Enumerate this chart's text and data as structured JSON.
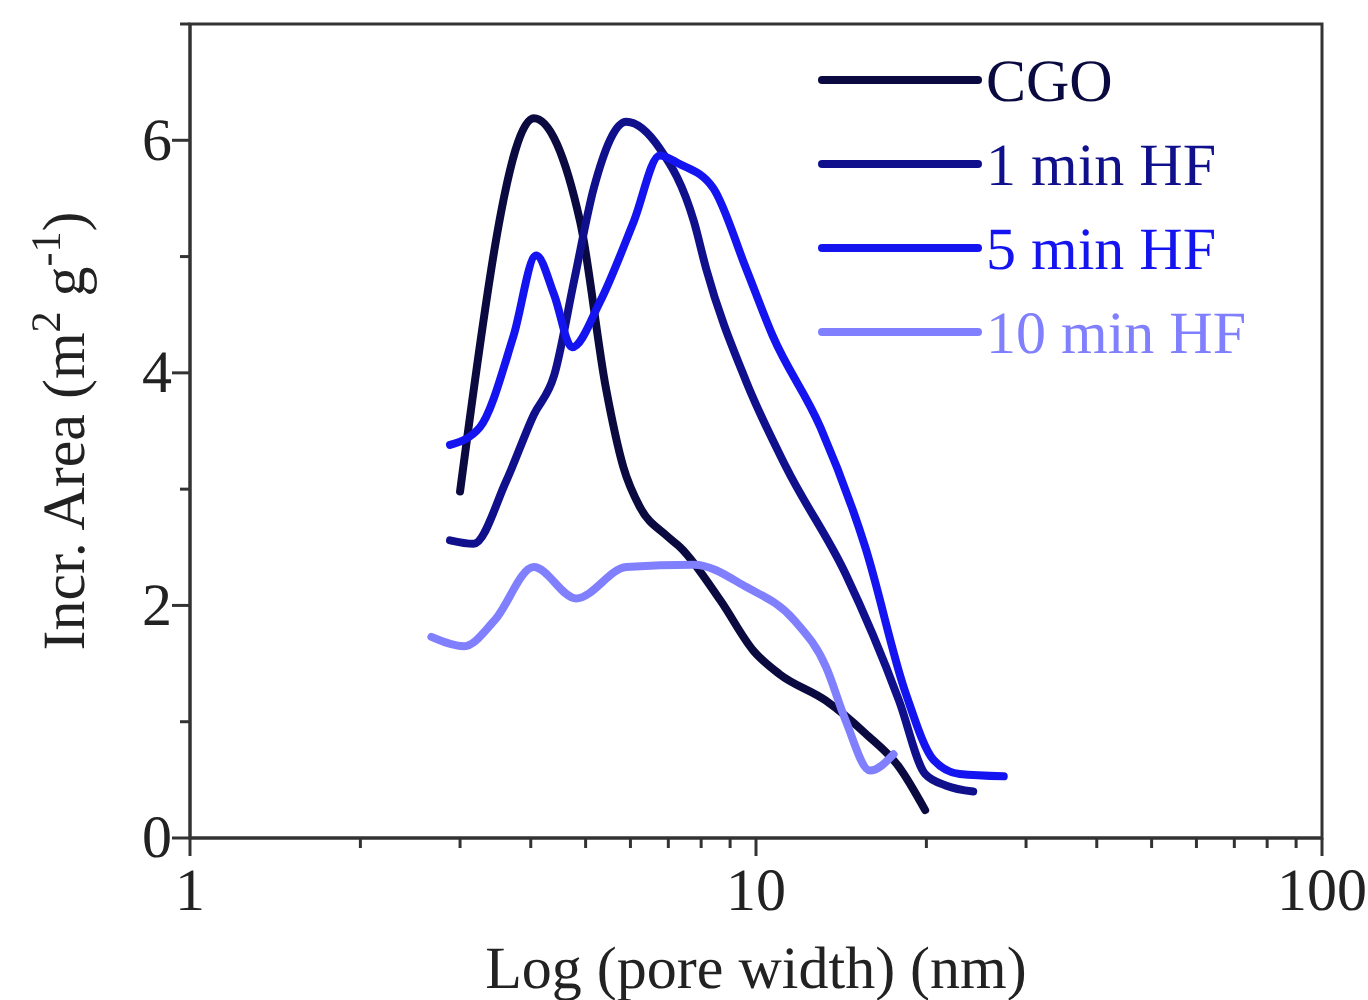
{
  "chart_data": {
    "type": "line",
    "xlabel": "Log (pore width) (nm)",
    "ylabel": "Incr. Area (m$^{2}$ g$^{-1}$)",
    "log": "x",
    "xlim": [
      1,
      100
    ],
    "ylim": [
      0,
      7
    ],
    "xticks": [
      1,
      {
        "value": 2,
        "label": null
      },
      {
        "value": 3,
        "label": null
      },
      {
        "value": 4,
        "label": null
      },
      {
        "value": 5,
        "label": null
      },
      {
        "value": 6,
        "label": null
      },
      {
        "value": 7,
        "label": null
      },
      {
        "value": 8,
        "label": null
      },
      {
        "value": 9,
        "label": null
      },
      10,
      {
        "value": 20,
        "label": null
      },
      {
        "value": 30,
        "label": null
      },
      {
        "value": 40,
        "label": null
      },
      {
        "value": 50,
        "label": null
      },
      {
        "value": 60,
        "label": null
      },
      {
        "value": 70,
        "label": null
      },
      {
        "value": 80,
        "label": null
      },
      {
        "value": 90,
        "label": null
      },
      100
    ],
    "yticks": [
      0,
      {
        "value": 1,
        "label": null
      },
      2,
      {
        "value": 3,
        "label": null
      },
      4,
      {
        "value": 5,
        "label": null
      },
      6,
      {
        "value": 7,
        "label": null
      }
    ],
    "grid": false,
    "legend": "top right",
    "marker": "none",
    "line_style": "solid",
    "series": [
      {
        "name": "CGO",
        "color": "#0a0a40",
        "x": [
          3.0,
          4.05,
          4.89,
          5.43,
          5.83,
          6.23,
          6.95,
          7.35,
          8.66,
          9.9,
          11.0,
          13.3,
          15.6,
          17.9,
          19.9
        ],
        "values": [
          2.98,
          6.19,
          5.3,
          3.87,
          3.19,
          2.85,
          2.6,
          2.5,
          2.04,
          1.61,
          1.41,
          1.18,
          0.9,
          0.61,
          0.24
        ]
      },
      {
        "name": "1 min HF",
        "color": "#10108c",
        "x": [
          2.88,
          3.17,
          3.62,
          4.05,
          4.4,
          4.77,
          5.17,
          5.9,
          6.76,
          7.77,
          8.16,
          9.6,
          11.3,
          14.4,
          17.9,
          19.9,
          21.7,
          24.2
        ],
        "values": [
          2.56,
          2.53,
          3.07,
          3.64,
          3.98,
          4.79,
          5.59,
          6.16,
          5.93,
          5.3,
          4.9,
          3.93,
          3.19,
          2.27,
          1.18,
          0.55,
          0.45,
          0.4
        ]
      },
      {
        "name": "5 min HF",
        "color": "#1414f0",
        "x": [
          2.88,
          3.25,
          3.73,
          4.09,
          4.4,
          4.73,
          5.3,
          6.08,
          6.76,
          7.3,
          8.4,
          9.6,
          10.7,
          13.0,
          15.6,
          18.4,
          20.6,
          22.9,
          27.4
        ],
        "values": [
          3.38,
          3.53,
          4.32,
          5.01,
          4.67,
          4.22,
          4.61,
          5.3,
          5.87,
          5.8,
          5.59,
          4.9,
          4.32,
          3.53,
          2.5,
          1.24,
          0.67,
          0.55,
          0.53
        ]
      },
      {
        "name": "10 min HF",
        "color": "#8080ff",
        "x": [
          2.67,
          3.05,
          3.45,
          4.05,
          4.81,
          5.9,
          7.77,
          9.6,
          11.7,
          13.3,
          14.4,
          15.9,
          17.5
        ],
        "values": [
          1.73,
          1.65,
          1.87,
          2.33,
          2.06,
          2.33,
          2.35,
          2.16,
          1.87,
          1.47,
          1.01,
          0.58,
          0.72
        ]
      }
    ]
  }
}
